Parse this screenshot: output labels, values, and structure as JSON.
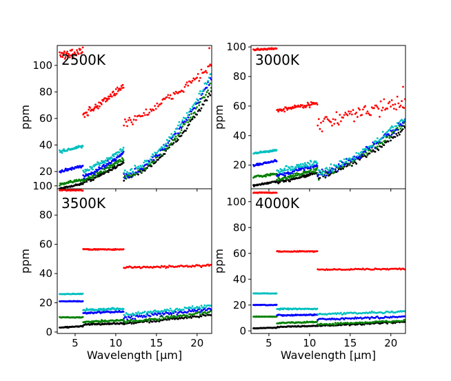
{
  "chart_data": {
    "type": "scatter",
    "xlabel": "Wavelength [μm]",
    "ylabel": "ppm",
    "xlim": [
      2.8,
      21.8
    ],
    "xticks": [
      5,
      10,
      15,
      20
    ],
    "series_colors": {
      "red": "#ff0000",
      "cyan": "#00bfbf",
      "blue": "#0000ff",
      "green": "#008000",
      "black": "#000000"
    },
    "band_breaks": [
      6.0,
      11.0
    ],
    "panels": [
      {
        "title": "2500K",
        "ylim": [
          7,
          115
        ],
        "yticks": [
          20,
          40,
          60,
          80,
          100
        ],
        "series": [
          {
            "name": "red",
            "color": "#ff0000",
            "bands": [
              [
                107,
                111,
                3.0
              ],
              [
                62,
                84,
                2.5
              ],
              [
                57,
                100,
                3.0
              ]
            ],
            "exp": [
              1.0,
              1.0,
              1.3
            ],
            "last_point": [
              21.5,
              113
            ]
          },
          {
            "name": "cyan",
            "color": "#00bfbf",
            "bands": [
              [
                35,
                39,
                1.0
              ],
              [
                20,
                37,
                1.5
              ],
              [
                19,
                93,
                2.0
              ]
            ],
            "exp": [
              1.0,
              1.2,
              1.6
            ]
          },
          {
            "name": "blue",
            "color": "#0000ff",
            "bands": [
              [
                20,
                24,
                0.8
              ],
              [
                16,
                34,
                1.5
              ],
              [
                17,
                90,
                2.0
              ]
            ],
            "exp": [
              1.0,
              1.2,
              1.6
            ]
          },
          {
            "name": "green",
            "color": "#008000",
            "bands": [
              [
                10,
                14,
                0.8
              ],
              [
                14,
                30,
                1.5
              ],
              [
                16,
                85,
                2.0
              ]
            ],
            "exp": [
              1.0,
              1.2,
              1.6
            ]
          },
          {
            "name": "black",
            "color": "#000000",
            "bands": [
              [
                7,
                11,
                0.5
              ],
              [
                12,
                27,
                1.0
              ],
              [
                15,
                80,
                1.5
              ]
            ],
            "exp": [
              1.0,
              1.2,
              1.6
            ]
          }
        ]
      },
      {
        "title": "3000K",
        "ylim": [
          4,
          101
        ],
        "yticks": [
          20,
          40,
          60,
          80,
          100
        ],
        "series": [
          {
            "name": "red",
            "color": "#ff0000",
            "bands": [
              [
                98,
                99,
                0.5
              ],
              [
                57,
                62,
                1.2
              ],
              [
                48,
                63,
                4.0
              ]
            ],
            "exp": [
              1.0,
              1.0,
              1.0
            ],
            "last_point": [
              21.5,
              73
            ]
          },
          {
            "name": "cyan",
            "color": "#00bfbf",
            "bands": [
              [
                28,
                30,
                0.6
              ],
              [
                16,
                22,
                1.5
              ],
              [
                15,
                52,
                2.0
              ]
            ],
            "exp": [
              1.0,
              1.0,
              1.4
            ]
          },
          {
            "name": "blue",
            "color": "#0000ff",
            "bands": [
              [
                20,
                23,
                0.6
              ],
              [
                13,
                20,
                1.2
              ],
              [
                14,
                50,
                2.0
              ]
            ],
            "exp": [
              1.0,
              1.0,
              1.4
            ]
          },
          {
            "name": "green",
            "color": "#008000",
            "bands": [
              [
                12,
                14,
                0.6
              ],
              [
                10,
                17,
                1.2
              ],
              [
                13,
                48,
                2.0
              ]
            ],
            "exp": [
              1.0,
              1.0,
              1.4
            ]
          },
          {
            "name": "black",
            "color": "#000000",
            "bands": [
              [
                6,
                9,
                0.5
              ],
              [
                8,
                15,
                1.0
              ],
              [
                12,
                45,
                1.5
              ]
            ],
            "exp": [
              1.0,
              1.0,
              1.4
            ]
          }
        ]
      },
      {
        "title": "3500K",
        "ylim": [
          -1,
          98
        ],
        "yticks": [
          0,
          20,
          40,
          60,
          80,
          100
        ],
        "series": [
          {
            "name": "red",
            "color": "#ff0000",
            "bands": [
              [
                97,
                97,
                0.2
              ],
              [
                56.5,
                56.5,
                0.3
              ],
              [
                44,
                45.5,
                0.6
              ]
            ],
            "exp": [
              1.0,
              1.0,
              1.0
            ]
          },
          {
            "name": "cyan",
            "color": "#00bfbf",
            "bands": [
              [
                26,
                26,
                0.2
              ],
              [
                15,
                16,
                0.6
              ],
              [
                12,
                18,
                1.0
              ]
            ],
            "exp": [
              1.0,
              1.0,
              1.2
            ]
          },
          {
            "name": "blue",
            "color": "#0000ff",
            "bands": [
              [
                21,
                21,
                0.2
              ],
              [
                13,
                14,
                0.5
              ],
              [
                10,
                16,
                1.0
              ]
            ],
            "exp": [
              1.0,
              1.0,
              1.2
            ]
          },
          {
            "name": "green",
            "color": "#008000",
            "bands": [
              [
                10,
                10,
                0.2
              ],
              [
                7,
                8,
                0.5
              ],
              [
                7,
                14,
                1.0
              ]
            ],
            "exp": [
              1.0,
              1.0,
              1.2
            ]
          },
          {
            "name": "black",
            "color": "#000000",
            "bands": [
              [
                3,
                4,
                0.3
              ],
              [
                5,
                6,
                0.4
              ],
              [
                6,
                12,
                0.8
              ]
            ],
            "exp": [
              1.0,
              1.0,
              1.2
            ]
          }
        ]
      },
      {
        "title": "4000K",
        "ylim": [
          -2,
          110
        ],
        "yticks": [
          0,
          20,
          40,
          60,
          80,
          100
        ],
        "series": [
          {
            "name": "red",
            "color": "#ff0000",
            "bands": [
              [
                107,
                107,
                0.2
              ],
              [
                61.5,
                61.5,
                0.3
              ],
              [
                47.5,
                48,
                0.4
              ]
            ],
            "exp": [
              1.0,
              1.0,
              1.0
            ]
          },
          {
            "name": "cyan",
            "color": "#00bfbf",
            "bands": [
              [
                29,
                29,
                0.2
              ],
              [
                17,
                17,
                0.4
              ],
              [
                13,
                15,
                0.6
              ]
            ],
            "exp": [
              1.0,
              1.0,
              1.2
            ]
          },
          {
            "name": "blue",
            "color": "#0000ff",
            "bands": [
              [
                20,
                20,
                0.2
              ],
              [
                12,
                12.5,
                0.4
              ],
              [
                9,
                11,
                0.6
              ]
            ],
            "exp": [
              1.0,
              1.0,
              1.2
            ]
          },
          {
            "name": "green",
            "color": "#008000",
            "bands": [
              [
                11,
                11,
                0.2
              ],
              [
                6,
                7,
                0.4
              ],
              [
                5,
                8,
                0.6
              ]
            ],
            "exp": [
              1.0,
              1.0,
              1.2
            ]
          },
          {
            "name": "black",
            "color": "#000000",
            "bands": [
              [
                2,
                2.5,
                0.2
              ],
              [
                3,
                4,
                0.3
              ],
              [
                4,
                7,
                0.5
              ]
            ],
            "exp": [
              1.0,
              1.0,
              1.2
            ]
          }
        ]
      }
    ]
  }
}
